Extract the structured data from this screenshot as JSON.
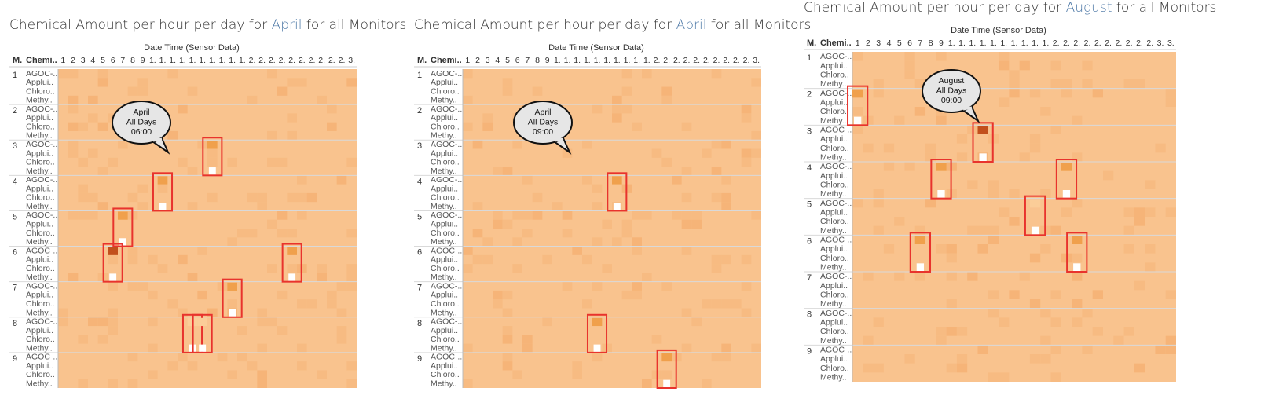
{
  "colors": {
    "background": "#f9c38e",
    "light": "#fbcd98",
    "mid": "#f0a04c",
    "dark": "#c2501c",
    "white": "#ffffff",
    "highlight_box": "#e8332d",
    "title_highlight": "#4e79a7"
  },
  "common": {
    "col_header": "Date Time (Sensor Data)",
    "monitor_header": "M.",
    "chemical_header": "Chemi..",
    "chemicals": [
      "AGOC-..",
      "Applui..",
      "Chloro..",
      "Methy.."
    ],
    "monitors": [
      "1",
      "2",
      "3",
      "4",
      "5",
      "6",
      "7",
      "8",
      "9"
    ],
    "day_ticks": [
      "1",
      "2",
      "3",
      "4",
      "5",
      "6",
      "7",
      "8",
      "9",
      "1.",
      "1.",
      "1.",
      "1.",
      "1.",
      "1.",
      "1.",
      "1.",
      "1.",
      "1.",
      "2.",
      "2.",
      "2.",
      "2.",
      "2.",
      "2.",
      "2.",
      "2.",
      "2.",
      "2.",
      "3."
    ]
  },
  "charts": [
    {
      "title_prefix": "Chemical Amount per hour per day for ",
      "title_month": "April",
      "title_suffix": " for all Monitors",
      "callout": [
        "April",
        "All Days",
        "06:00"
      ]
    },
    {
      "title_prefix": "Chemical Amount per hour per day for ",
      "title_month": "April",
      "title_suffix": " for all Monitors",
      "callout": [
        "April",
        "All Days",
        "09:00"
      ]
    },
    {
      "title_prefix": "Chemical Amount per hour per day for ",
      "title_month": "August",
      "title_suffix": " for all Monitors",
      "callout": [
        "August",
        "All Days",
        "09:00"
      ]
    }
  ],
  "chart_data": [
    {
      "type": "heatmap",
      "title": "Chemical Amount per hour per day for April for all Monitors",
      "xlabel": "Date Time (Sensor Data)",
      "x": "day of month (1-30)",
      "rows": "monitor 1-9 x chemical [AGOC-3A, Appluimonia, Chlorodinine, Methylosmolene]",
      "highlighted_cells": [
        {
          "monitor": 3,
          "day": 16,
          "AGOC": "mid",
          "Methy": "white"
        },
        {
          "monitor": 4,
          "day": 11,
          "AGOC": "mid",
          "Methy": "white"
        },
        {
          "monitor": 5,
          "day": 7,
          "AGOC": "mid",
          "Methy": "white"
        },
        {
          "monitor": 6,
          "day": 6,
          "AGOC": "dark",
          "Methy": "white"
        },
        {
          "monitor": 6,
          "day": 24,
          "AGOC": "mid",
          "Methy": "white"
        },
        {
          "monitor": 7,
          "day": 18,
          "AGOC": "mid",
          "Methy": "white"
        },
        {
          "monitor": 8,
          "day": 14,
          "AGOC": "light",
          "Methy": "white"
        },
        {
          "monitor": 8,
          "day": 15,
          "AGOC": "light",
          "Methy": "white"
        }
      ]
    },
    {
      "type": "heatmap",
      "title": "Chemical Amount per hour per day for April for all Monitors",
      "xlabel": "Date Time (Sensor Data)",
      "x": "day of month (1-30)",
      "highlighted_cells": [
        {
          "monitor": 4,
          "day": 16,
          "AGOC": "mid",
          "Methy": "white"
        },
        {
          "monitor": 8,
          "day": 14,
          "AGOC": "mid",
          "Methy": "white"
        },
        {
          "monitor": 9,
          "day": 21,
          "AGOC": "mid",
          "Methy": "white"
        }
      ]
    },
    {
      "type": "heatmap",
      "title": "Chemical Amount per hour per day for August for all Monitors",
      "xlabel": "Date Time (Sensor Data)",
      "x": "day of month (1-31)",
      "highlighted_cells": [
        {
          "monitor": 2,
          "day": 1,
          "AGOC": "mid",
          "Methy": "white"
        },
        {
          "monitor": 3,
          "day": 13,
          "AGOC": "dark",
          "Methy": "white"
        },
        {
          "monitor": 4,
          "day": 9,
          "AGOC": "mid",
          "Methy": "white"
        },
        {
          "monitor": 4,
          "day": 21,
          "AGOC": "mid",
          "Methy": "white"
        },
        {
          "monitor": 5,
          "day": 18,
          "AGOC": "light",
          "Methy": "white"
        },
        {
          "monitor": 6,
          "day": 7,
          "AGOC": "mid",
          "Methy": "white"
        },
        {
          "monitor": 6,
          "day": 22,
          "AGOC": "mid",
          "Methy": "white"
        }
      ]
    }
  ]
}
